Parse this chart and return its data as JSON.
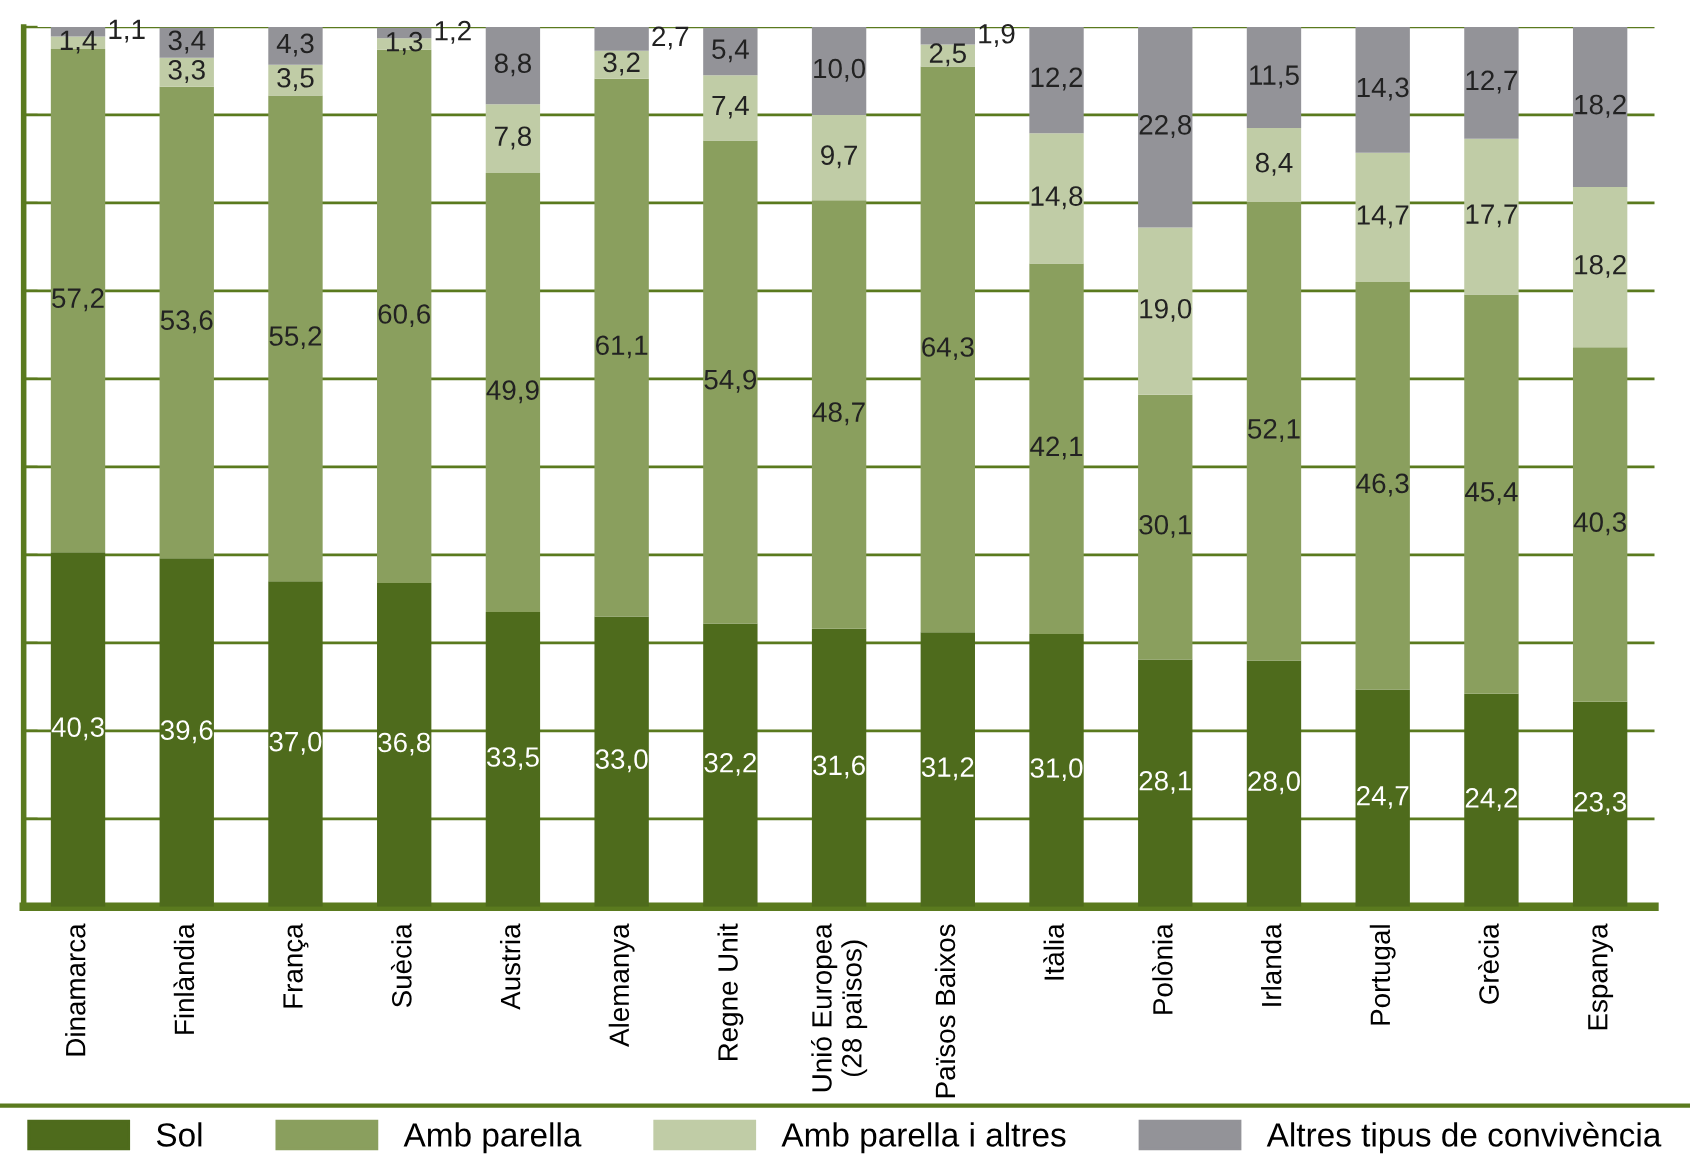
{
  "chart_data": {
    "type": "bar",
    "stacked": true,
    "categories": [
      "Dinamarca",
      "Finlàndia",
      "França",
      "Suècia",
      "Austria",
      "Alemanya",
      "Regne Unit",
      "Unió Europea\n(28 països)",
      "Països Baixos",
      "Itàlia",
      "Polònia",
      "Irlanda",
      "Portugal",
      "Grècia",
      "Espanya"
    ],
    "series": [
      {
        "name": "Sol",
        "color": "#4e6b1c",
        "values": [
          40.3,
          39.6,
          37.0,
          36.8,
          33.5,
          33.0,
          32.2,
          31.6,
          31.2,
          31.0,
          28.1,
          28.0,
          24.7,
          24.2,
          23.3
        ],
        "value_labels": [
          "40,3",
          "39,6",
          "37,0",
          "36,8",
          "33,5",
          "33,0",
          "32,2",
          "31,6",
          "31,2",
          "31,0",
          "28,1",
          "28,0",
          "24,7",
          "24,2",
          "23,3"
        ]
      },
      {
        "name": "Amb parella",
        "color": "#8a9f5e",
        "values": [
          57.2,
          53.6,
          55.2,
          60.6,
          49.9,
          61.1,
          54.9,
          48.7,
          64.3,
          42.1,
          30.1,
          52.1,
          46.3,
          45.4,
          40.3
        ],
        "value_labels": [
          "57,2",
          "53,6",
          "55,2",
          "60,6",
          "49,9",
          "61,1",
          "54,9",
          "48,7",
          "64,3",
          "42,1",
          "30,1",
          "52,1",
          "46,3",
          "45,4",
          "40,3"
        ]
      },
      {
        "name": "Amb parella i altres",
        "color": "#c0cca6",
        "values": [
          1.4,
          3.3,
          3.5,
          1.3,
          7.8,
          3.2,
          7.4,
          9.7,
          2.5,
          14.8,
          19.0,
          8.4,
          14.7,
          17.7,
          18.2
        ],
        "value_labels": [
          "1,4",
          "3,3",
          "3,5",
          "1,3",
          "7,8",
          "3,2",
          "7,4",
          "9,7",
          "2,5",
          "14,8",
          "19,0",
          "8,4",
          "14,7",
          "17,7",
          "18,2"
        ]
      },
      {
        "name": "Altres tipus de convivència",
        "color": "#939398",
        "values": [
          1.1,
          3.4,
          4.3,
          1.2,
          8.8,
          2.7,
          5.4,
          10.0,
          1.9,
          12.2,
          22.8,
          11.5,
          14.3,
          12.7,
          18.2
        ],
        "value_labels": [
          "1,1",
          "3,4",
          "4,3",
          "1,2",
          "8,8",
          "2,7",
          "5,4",
          "10,0",
          "1,9",
          "12,2",
          "22,8",
          "11,5",
          "14,3",
          "12,7",
          "18,2"
        ]
      }
    ],
    "ylim": [
      0,
      100
    ],
    "yticks": [
      {
        "value": 0,
        "label": null
      },
      {
        "value": 10,
        "label": null
      },
      {
        "value": 20,
        "label": null
      },
      {
        "value": 30,
        "label": null
      },
      {
        "value": 40,
        "label": null
      },
      {
        "value": 50,
        "label": null
      },
      {
        "value": 60,
        "label": null
      },
      {
        "value": 70,
        "label": null
      },
      {
        "value": 80,
        "label": null
      },
      {
        "value": 90,
        "label": null
      },
      {
        "value": 100,
        "label": null
      }
    ],
    "tick_labels": "x",
    "grid": "y",
    "legend": "bottom"
  }
}
